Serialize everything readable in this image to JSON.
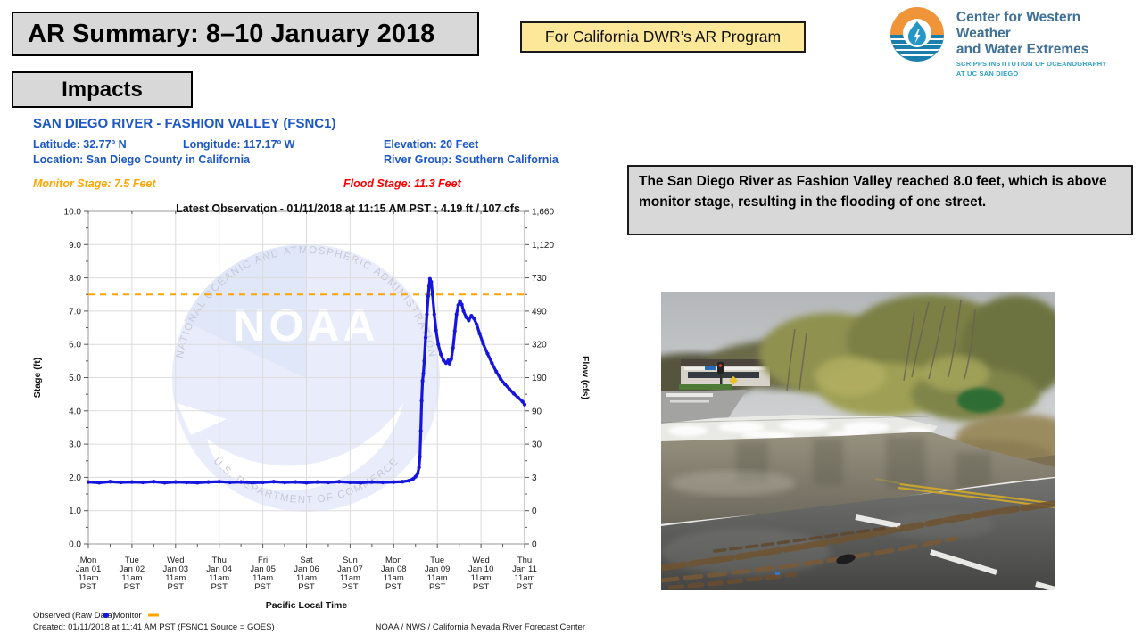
{
  "slide": {
    "title": "AR Summary: 8–10 January 2018",
    "section_label": "Impacts",
    "program_note": "For California DWR’s AR Program"
  },
  "logo": {
    "org_line1": "Center for Western Weather",
    "org_line2": "and Water Extremes",
    "sub_line1": "SCRIPPS INSTITUTION OF OCEANOGRAPHY",
    "sub_line2": "AT UC SAN DIEGO"
  },
  "station": {
    "name": "SAN DIEGO RIVER - FASHION VALLEY (FSNC1)",
    "latitude": "Latitude: 32.77º N",
    "longitude": "Longitude: 117.17º W",
    "elevation": "Elevation: 20 Feet",
    "location": "Location: San Diego County in California",
    "river_group": "River Group: Southern California",
    "monitor_stage": "Monitor Stage: 7.5 Feet",
    "flood_stage": "Flood Stage: 11.3 Feet"
  },
  "impact": {
    "note": "The San Diego River as Fashion Valley reached 8.0 feet, which is above monitor stage, resulting in the flooding of one street."
  },
  "chart_data": {
    "type": "line",
    "title": "Latest Observation - 01/11/2018 at 11:15 AM PST : 4.19 ft / 107 cfs",
    "latest_observation": {
      "datetime": "01/11/2018 at 11:15 AM PST",
      "stage_ft": 4.19,
      "flow_cfs": 107
    },
    "x_axis": {
      "label": "Pacific Local Time",
      "ticks": [
        [
          "Mon",
          "Jan 01",
          "11am",
          "PST"
        ],
        [
          "Tue",
          "Jan 02",
          "11am",
          "PST"
        ],
        [
          "Wed",
          "Jan 03",
          "11am",
          "PST"
        ],
        [
          "Thu",
          "Jan 04",
          "11am",
          "PST"
        ],
        [
          "Fri",
          "Jan 05",
          "11am",
          "PST"
        ],
        [
          "Sat",
          "Jan 06",
          "11am",
          "PST"
        ],
        [
          "Sun",
          "Jan 07",
          "11am",
          "PST"
        ],
        [
          "Mon",
          "Jan 08",
          "11am",
          "PST"
        ],
        [
          "Tue",
          "Jan 09",
          "11am",
          "PST"
        ],
        [
          "Wed",
          "Jan 10",
          "11am",
          "PST"
        ],
        [
          "Thu",
          "Jan 11",
          "11am",
          "PST"
        ]
      ]
    },
    "y_left": {
      "label": "Stage (ft)",
      "min": 0,
      "max": 10,
      "ticks": [
        "10.0",
        "9.0",
        "8.0",
        "7.0",
        "6.0",
        "5.0",
        "4.0",
        "3.0",
        "2.0",
        "1.0",
        "0.0"
      ]
    },
    "y_right": {
      "label": "Flow (cfs)",
      "ticks": [
        "1,660",
        "1,120",
        "730",
        "490",
        "320",
        "190",
        "90",
        "30",
        "3",
        "0",
        "0"
      ]
    },
    "monitor_stage_ft": 7.5,
    "flood_stage_ft": 11.3,
    "colors": {
      "observed": "#1515dd",
      "monitor": "#ffa400",
      "flood": "#ff0000"
    },
    "series": [
      {
        "name": "Observed (Raw Data)",
        "x_units": "days since Jan 01 11am PST",
        "y_units": "stage_ft",
        "points": [
          [
            0,
            1.86
          ],
          [
            0.25,
            1.84
          ],
          [
            0.5,
            1.87
          ],
          [
            0.75,
            1.85
          ],
          [
            1,
            1.86
          ],
          [
            1.25,
            1.85
          ],
          [
            1.5,
            1.87
          ],
          [
            1.75,
            1.84
          ],
          [
            2,
            1.86
          ],
          [
            2.25,
            1.85
          ],
          [
            2.5,
            1.84
          ],
          [
            2.75,
            1.86
          ],
          [
            3,
            1.87
          ],
          [
            3.25,
            1.85
          ],
          [
            3.5,
            1.86
          ],
          [
            3.75,
            1.84
          ],
          [
            4,
            1.85
          ],
          [
            4.25,
            1.87
          ],
          [
            4.5,
            1.85
          ],
          [
            4.75,
            1.86
          ],
          [
            5,
            1.84
          ],
          [
            5.25,
            1.86
          ],
          [
            5.5,
            1.85
          ],
          [
            5.75,
            1.87
          ],
          [
            6,
            1.85
          ],
          [
            6.25,
            1.84
          ],
          [
            6.5,
            1.86
          ],
          [
            6.75,
            1.85
          ],
          [
            7,
            1.86
          ],
          [
            7.2,
            1.87
          ],
          [
            7.35,
            1.9
          ],
          [
            7.45,
            1.96
          ],
          [
            7.5,
            2.02
          ],
          [
            7.55,
            2.12
          ],
          [
            7.58,
            2.3
          ],
          [
            7.6,
            2.62
          ],
          [
            7.62,
            3.4
          ],
          [
            7.64,
            4.3
          ],
          [
            7.66,
            4.9
          ],
          [
            7.68,
            5.12
          ],
          [
            7.7,
            5.5
          ],
          [
            7.73,
            6.2
          ],
          [
            7.76,
            6.9
          ],
          [
            7.79,
            7.45
          ],
          [
            7.81,
            7.75
          ],
          [
            7.83,
            7.97
          ],
          [
            7.86,
            7.88
          ],
          [
            7.89,
            7.5
          ],
          [
            7.93,
            6.9
          ],
          [
            7.97,
            6.42
          ],
          [
            8.02,
            6.0
          ],
          [
            8.08,
            5.7
          ],
          [
            8.14,
            5.52
          ],
          [
            8.2,
            5.44
          ],
          [
            8.25,
            5.52
          ],
          [
            8.28,
            5.42
          ],
          [
            8.32,
            5.56
          ],
          [
            8.36,
            5.9
          ],
          [
            8.4,
            6.4
          ],
          [
            8.44,
            6.9
          ],
          [
            8.48,
            7.18
          ],
          [
            8.52,
            7.3
          ],
          [
            8.56,
            7.2
          ],
          [
            8.6,
            7.0
          ],
          [
            8.66,
            6.82
          ],
          [
            8.72,
            6.72
          ],
          [
            8.78,
            6.86
          ],
          [
            8.84,
            6.78
          ],
          [
            8.9,
            6.6
          ],
          [
            8.97,
            6.32
          ],
          [
            9.05,
            6.02
          ],
          [
            9.15,
            5.72
          ],
          [
            9.25,
            5.44
          ],
          [
            9.35,
            5.18
          ],
          [
            9.45,
            4.96
          ],
          [
            9.55,
            4.8
          ],
          [
            9.65,
            4.66
          ],
          [
            9.75,
            4.52
          ],
          [
            9.85,
            4.4
          ],
          [
            9.95,
            4.28
          ],
          [
            10,
            4.19
          ]
        ]
      }
    ],
    "legend": {
      "observed_label": "Observed (Raw Data)",
      "monitor_label": "Monitor"
    },
    "footer_left": "Created: 01/11/2018 at 11:41 AM PST   (FSNC1 Source = GOES)",
    "footer_right": "NOAA / NWS / California Nevada River Forecast Center",
    "watermark": {
      "text": "NOAA",
      "ring_top": "NATIONAL OCEANIC AND ATMOSPHERIC ADMINISTRATION",
      "ring_bottom": "U.S. DEPARTMENT OF COMMERCE"
    }
  }
}
